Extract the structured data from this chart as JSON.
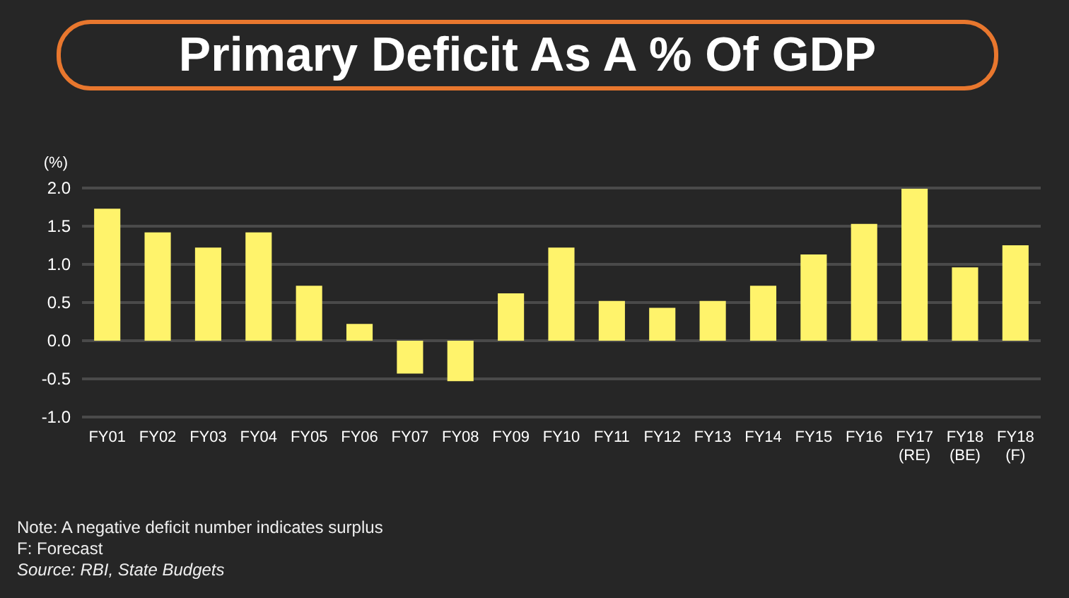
{
  "chart_data": {
    "type": "bar",
    "title": "Primary Deficit As A % Of GDP",
    "ylabel": "(%)",
    "categories": [
      "FY01",
      "FY02",
      "FY03",
      "FY04",
      "FY05",
      "FY06",
      "FY07",
      "FY08",
      "FY09",
      "FY10",
      "FY11",
      "FY12",
      "FY13",
      "FY14",
      "FY15",
      "FY16",
      "FY17\n(RE)",
      "FY18\n(BE)",
      "FY18\n(F)"
    ],
    "values": [
      1.73,
      1.42,
      1.22,
      1.42,
      0.72,
      0.22,
      -0.43,
      -0.53,
      0.62,
      1.22,
      0.52,
      0.43,
      0.52,
      0.72,
      1.13,
      1.53,
      1.99,
      0.96,
      1.25
    ],
    "color": "#fff36b",
    "ylim": [
      -1.0,
      2.0
    ],
    "yticks": [
      {
        "value": -1,
        "label": "-1.0"
      },
      {
        "value": -0.5,
        "label": "-0.5"
      },
      {
        "value": 0,
        "label": "0.0"
      },
      {
        "value": 0.5,
        "label": "0.5"
      },
      {
        "value": 1,
        "label": "1.0"
      },
      {
        "value": 1.5,
        "label": "1.5"
      },
      {
        "value": 2,
        "label": "2.0"
      }
    ],
    "grid": "y",
    "annotations": [
      "Note: A negative deficit number indicates surplus",
      "F: Forecast",
      "Source: RBI, State Budgets"
    ]
  }
}
